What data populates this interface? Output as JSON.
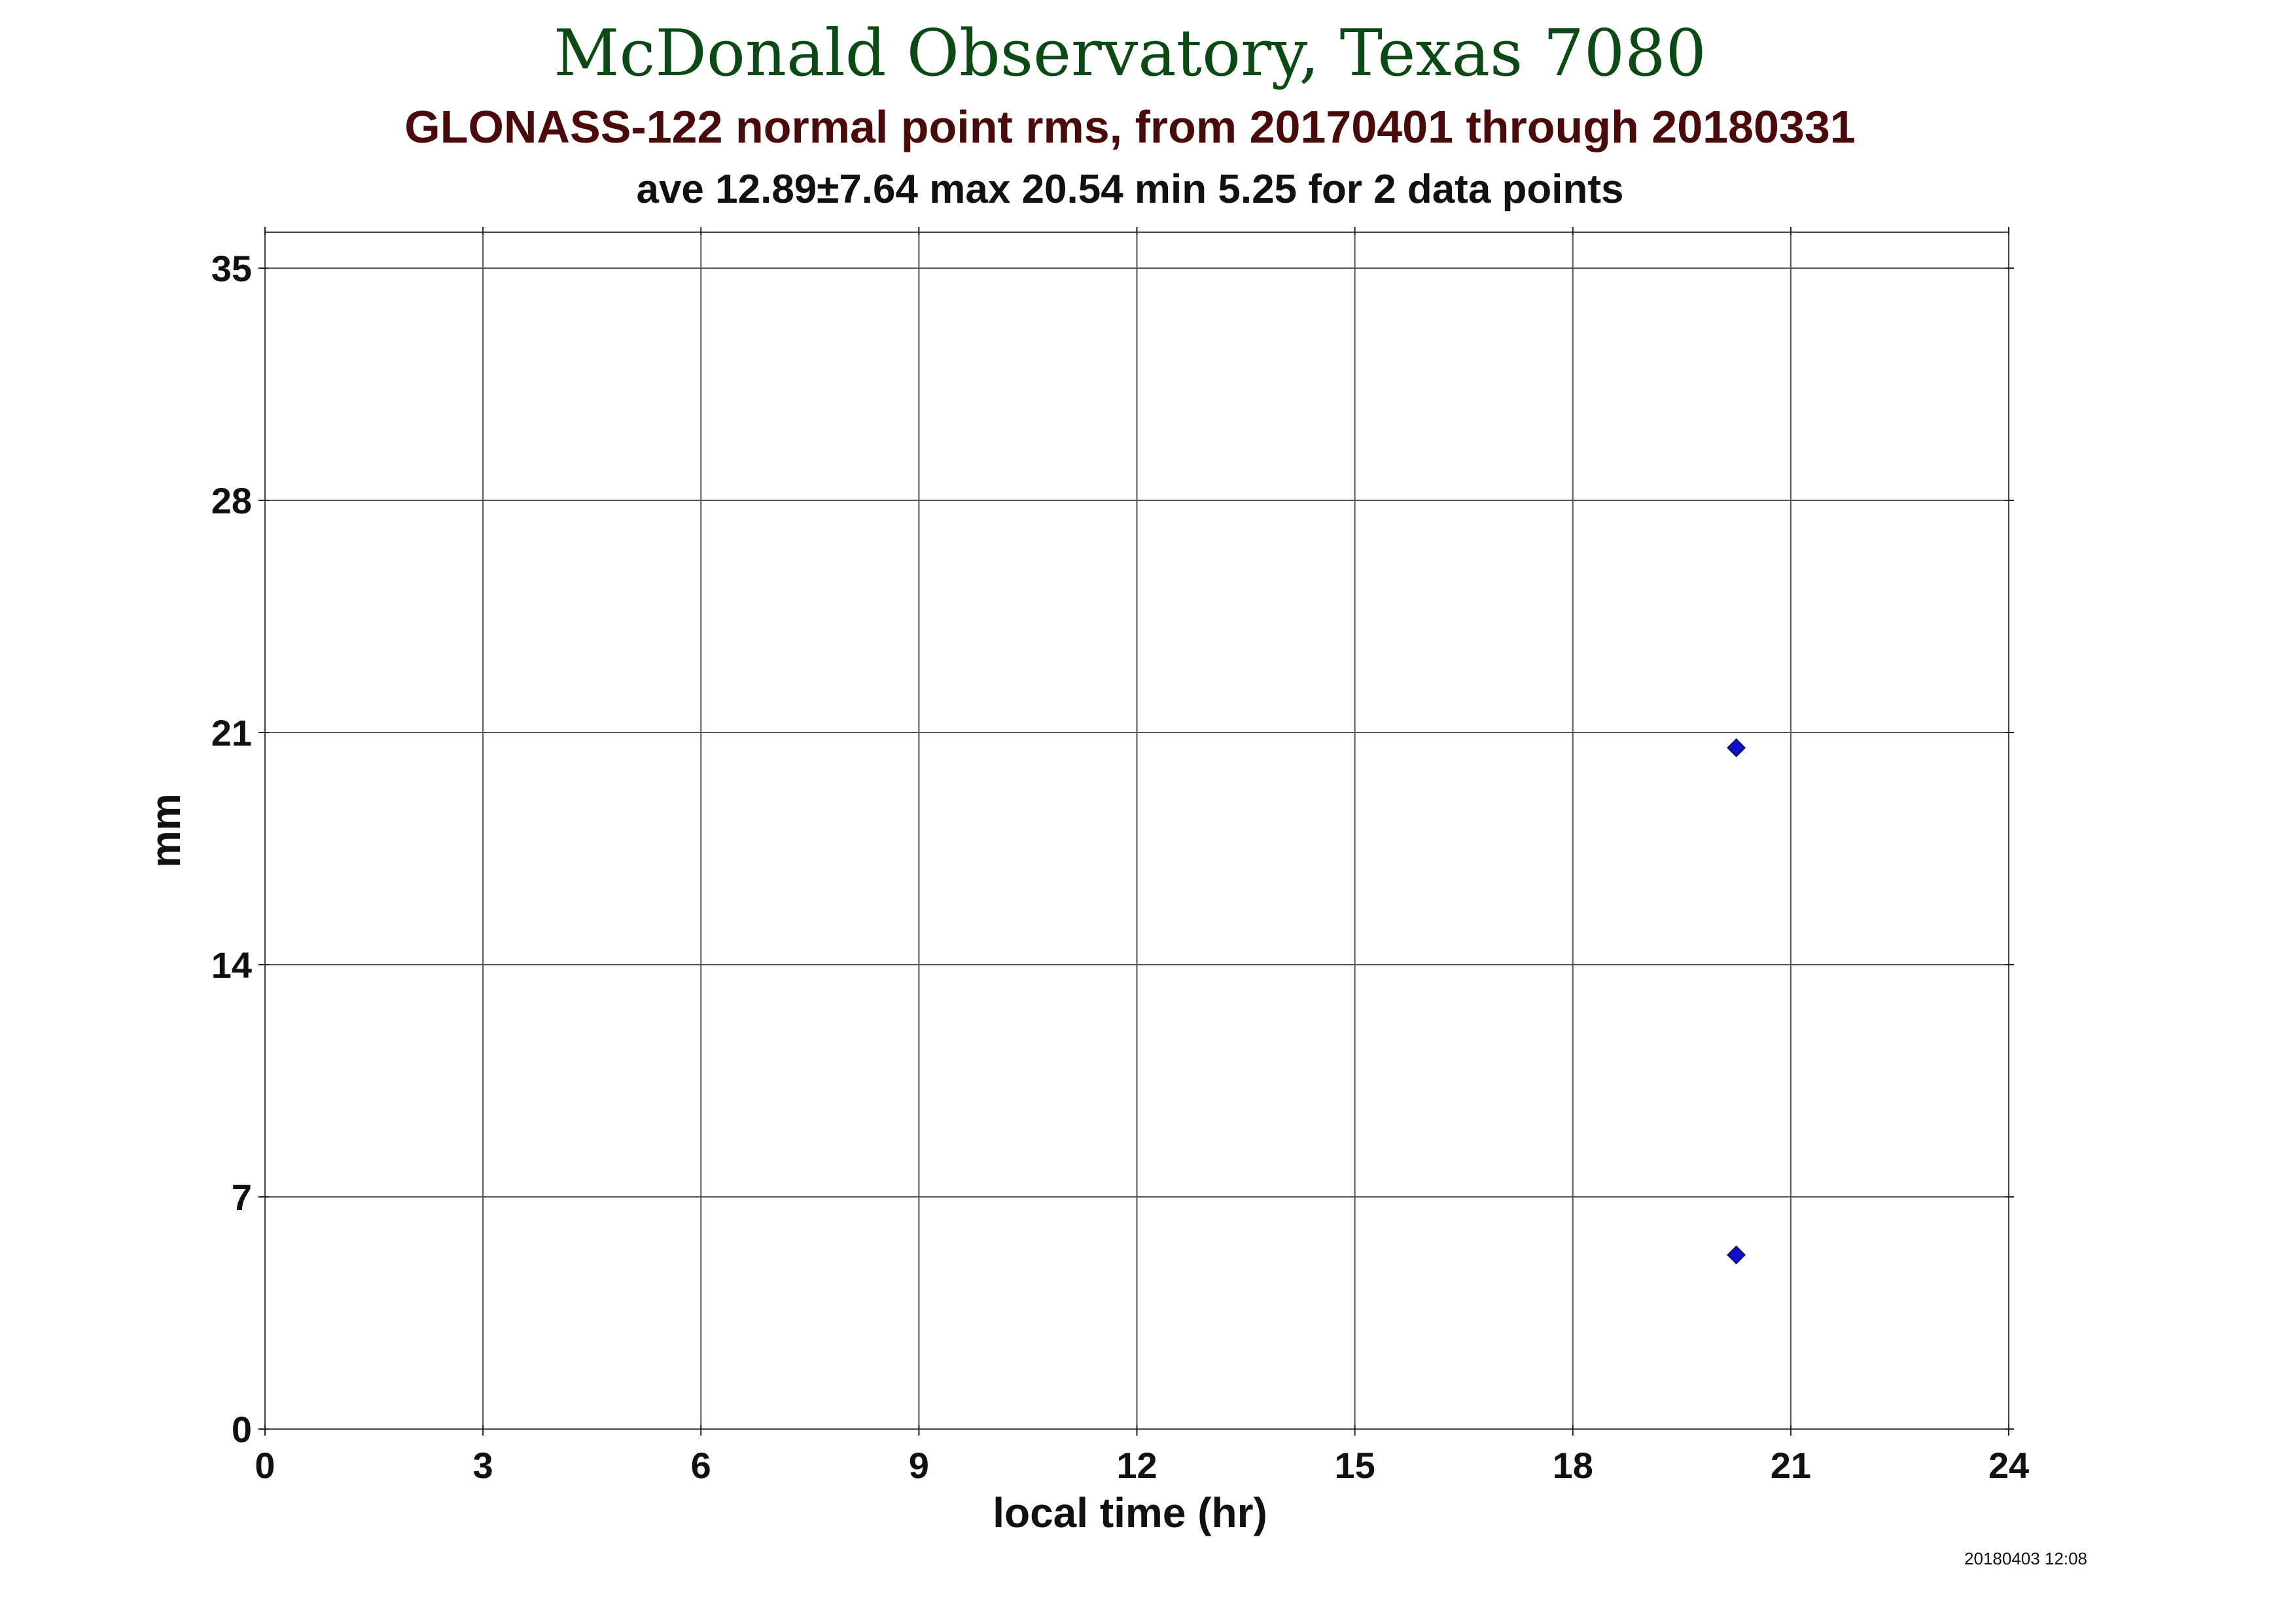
{
  "header": {
    "title": "McDonald Observatory, Texas 7080",
    "subtitle": "GLONASS-122 normal point rms, from 20170401 through 20180331",
    "stats": "ave 12.89±7.64 max 20.54 min 5.25 for 2 data points"
  },
  "footer": {
    "timestamp": "20180403 12:08"
  },
  "colors": {
    "title": "#0b4a14",
    "subtitle": "#4a0a0a",
    "marker": "#1010c8"
  },
  "chart_data": {
    "type": "scatter",
    "title": "McDonald Observatory, Texas 7080",
    "subtitle": "GLONASS-122 normal point rms, from 20170401 through 20180331",
    "xlabel": "local time (hr)",
    "ylabel": "mm",
    "xlim": [
      0,
      24
    ],
    "ylim": [
      0,
      36
    ],
    "xticks": [
      0,
      3,
      6,
      9,
      12,
      15,
      18,
      21,
      24
    ],
    "yticks": [
      0,
      7,
      14,
      21,
      28,
      35
    ],
    "grid": true,
    "marker": "diamond",
    "series": [
      {
        "points": [
          {
            "x": 20.25,
            "y": 20.54
          },
          {
            "x": 20.25,
            "y": 5.25
          }
        ]
      }
    ]
  }
}
